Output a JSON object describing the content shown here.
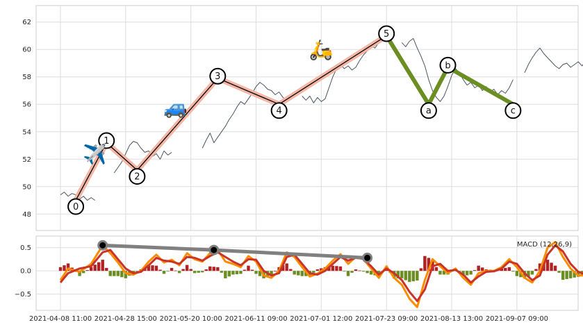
{
  "chart_data": [
    {
      "type": "line",
      "panel": "price",
      "ylim": [
        46.8,
        63.2
      ],
      "yticks": [
        48,
        50,
        52,
        54,
        56,
        58,
        60,
        62
      ],
      "grid": true,
      "price_segments": [
        [
          [
            0,
            49.4
          ],
          [
            1,
            49.6
          ],
          [
            2,
            49.3
          ],
          [
            3,
            49.5
          ],
          [
            4,
            49.4
          ],
          [
            5,
            49.1
          ],
          [
            6,
            49.3
          ],
          [
            7,
            49.0
          ],
          [
            8,
            49.2
          ],
          [
            9,
            49.0
          ]
        ],
        [
          [
            14,
            51.0
          ],
          [
            15,
            51.4
          ],
          [
            16,
            51.8
          ],
          [
            17,
            52.4
          ],
          [
            18,
            53.0
          ],
          [
            19,
            53.3
          ],
          [
            20,
            53.2
          ],
          [
            21,
            52.8
          ],
          [
            22,
            52.5
          ],
          [
            23,
            52.6
          ],
          [
            24,
            52.2
          ],
          [
            25,
            52.4
          ],
          [
            26,
            52.0
          ],
          [
            27,
            52.6
          ],
          [
            28,
            52.3
          ],
          [
            29,
            52.5
          ]
        ],
        [
          [
            37,
            52.8
          ],
          [
            38,
            53.4
          ],
          [
            39,
            53.9
          ],
          [
            40,
            53.2
          ],
          [
            41,
            53.6
          ],
          [
            42,
            54.0
          ],
          [
            43,
            54.4
          ],
          [
            44,
            54.9
          ],
          [
            45,
            55.3
          ],
          [
            46,
            55.8
          ],
          [
            47,
            56.2
          ],
          [
            48,
            56.0
          ],
          [
            49,
            56.4
          ],
          [
            50,
            56.8
          ],
          [
            51,
            57.3
          ],
          [
            52,
            57.6
          ],
          [
            53,
            57.4
          ],
          [
            54,
            57.1
          ],
          [
            55,
            57.0
          ],
          [
            56,
            56.7
          ],
          [
            57,
            56.9
          ],
          [
            58,
            56.5
          ],
          [
            59,
            56.3
          ]
        ],
        [
          [
            63,
            56.6
          ],
          [
            64,
            56.3
          ],
          [
            65,
            56.6
          ],
          [
            66,
            56.1
          ],
          [
            67,
            56.5
          ],
          [
            68,
            56.2
          ],
          [
            69,
            56.4
          ],
          [
            70,
            57.2
          ],
          [
            71,
            58.0
          ],
          [
            72,
            58.6
          ],
          [
            73,
            58.9
          ],
          [
            74,
            58.6
          ],
          [
            75,
            58.8
          ],
          [
            76,
            58.5
          ],
          [
            77,
            58.7
          ],
          [
            78,
            59.2
          ],
          [
            79,
            59.6
          ],
          [
            80,
            59.9
          ],
          [
            81,
            60.3
          ],
          [
            82,
            60.1
          ],
          [
            83,
            60.5
          ],
          [
            84,
            60.7
          ],
          [
            85,
            60.9
          ],
          [
            86,
            61.0
          ]
        ],
        [
          [
            89,
            60.5
          ],
          [
            90,
            60.2
          ],
          [
            91,
            60.6
          ],
          [
            92,
            60.8
          ],
          [
            93,
            60.1
          ],
          [
            94,
            59.5
          ],
          [
            95,
            58.8
          ],
          [
            96,
            57.8
          ],
          [
            97,
            57.0
          ],
          [
            98,
            56.5
          ],
          [
            99,
            56.2
          ],
          [
            100,
            56.6
          ],
          [
            101,
            57.3
          ],
          [
            102,
            58.1
          ],
          [
            103,
            58.6
          ],
          [
            104,
            58.3
          ],
          [
            105,
            57.8
          ],
          [
            106,
            57.4
          ],
          [
            107,
            57.6
          ],
          [
            108,
            57.2
          ],
          [
            109,
            57.4
          ],
          [
            110,
            57.0
          ],
          [
            111,
            57.3
          ],
          [
            112,
            56.9
          ],
          [
            113,
            57.1
          ],
          [
            114,
            56.7
          ],
          [
            115,
            57.0
          ],
          [
            116,
            56.8
          ],
          [
            117,
            57.2
          ],
          [
            118,
            57.8
          ]
        ],
        [
          [
            121,
            58.3
          ],
          [
            122,
            58.9
          ],
          [
            123,
            59.4
          ],
          [
            124,
            59.8
          ],
          [
            125,
            60.1
          ],
          [
            126,
            59.7
          ],
          [
            127,
            59.4
          ],
          [
            128,
            59.1
          ],
          [
            129,
            58.8
          ],
          [
            130,
            58.6
          ],
          [
            131,
            58.9
          ],
          [
            132,
            59.0
          ],
          [
            133,
            58.7
          ],
          [
            134,
            58.9
          ],
          [
            135,
            59.1
          ],
          [
            136,
            58.8
          ],
          [
            137,
            59.2
          ],
          [
            138,
            58.7
          ],
          [
            139,
            58.5
          ]
        ],
        [
          [
            141,
            58.4
          ],
          [
            142,
            58.6
          ],
          [
            143,
            58.3
          ]
        ],
        [
          [
            145,
            57.4
          ],
          [
            146,
            57.0
          ],
          [
            147,
            56.7
          ],
          [
            148,
            56.3
          ]
        ]
      ],
      "impulse_wave": {
        "points": [
          [
            4,
            49.0
          ],
          [
            12,
            53.2
          ],
          [
            20,
            51.2
          ],
          [
            41,
            57.9
          ],
          [
            57,
            56.0
          ],
          [
            85,
            61.0
          ]
        ],
        "labels": [
          "0",
          "1",
          "2",
          "3",
          "4",
          "5"
        ]
      },
      "corrective_wave": {
        "points": [
          [
            85,
            61.0
          ],
          [
            96,
            56.0
          ],
          [
            101,
            58.7
          ],
          [
            118,
            56.0
          ]
        ],
        "labels": [
          "",
          "a",
          "b",
          "c"
        ]
      },
      "emoji_markers": [
        {
          "x": 9,
          "y": 52.4,
          "name": "airplane",
          "glyph": "✈️"
        },
        {
          "x": 30,
          "y": 55.8,
          "name": "car",
          "glyph": "🚙"
        },
        {
          "x": 68,
          "y": 60.0,
          "name": "scooter",
          "glyph": "🛵"
        }
      ]
    },
    {
      "type": "line",
      "panel": "macd",
      "legend": "MACD (12,26,9)",
      "legend_position": "top-right",
      "ylim": [
        -0.85,
        0.75
      ],
      "yticks": [
        -0.5,
        0.0,
        0.5
      ],
      "ytick_labels": [
        "−0.5",
        "0.0",
        "0.5"
      ],
      "grid": true,
      "xticks": [
        {
          "x": 0,
          "label": "2021-04-08 11:00"
        },
        {
          "x": 17,
          "label": "2021-04-28 15:00"
        },
        {
          "x": 34,
          "label": "2021-05-20 10:00"
        },
        {
          "x": 51,
          "label": "2021-06-11 09:00"
        },
        {
          "x": 68,
          "label": "2021-07-01 12:00"
        },
        {
          "x": 85,
          "label": "2021-07-23 09:00"
        },
        {
          "x": 102,
          "label": "2021-08-13 13:00"
        },
        {
          "x": 119,
          "label": "2021-09-07 09:00"
        }
      ],
      "macd": [
        [
          0,
          -0.2
        ],
        [
          2,
          0.05
        ],
        [
          5,
          -0.02
        ],
        [
          8,
          0.15
        ],
        [
          11,
          0.55
        ],
        [
          13,
          0.38
        ],
        [
          15,
          0.18
        ],
        [
          17,
          -0.05
        ],
        [
          19,
          -0.08
        ],
        [
          21,
          0.0
        ],
        [
          23,
          0.2
        ],
        [
          25,
          0.35
        ],
        [
          27,
          0.18
        ],
        [
          29,
          0.24
        ],
        [
          31,
          0.12
        ],
        [
          33,
          0.38
        ],
        [
          35,
          0.25
        ],
        [
          37,
          0.2
        ],
        [
          39,
          0.38
        ],
        [
          41,
          0.45
        ],
        [
          43,
          0.2
        ],
        [
          45,
          0.15
        ],
        [
          47,
          0.08
        ],
        [
          49,
          0.32
        ],
        [
          51,
          0.2
        ],
        [
          53,
          -0.1
        ],
        [
          55,
          -0.15
        ],
        [
          57,
          0.0
        ],
        [
          59,
          0.4
        ],
        [
          61,
          0.3
        ],
        [
          63,
          0.08
        ],
        [
          65,
          -0.12
        ],
        [
          67,
          -0.06
        ],
        [
          69,
          0.05
        ],
        [
          71,
          0.22
        ],
        [
          73,
          0.36
        ],
        [
          75,
          0.15
        ],
        [
          77,
          0.3
        ],
        [
          79,
          0.25
        ],
        [
          81,
          0.05
        ],
        [
          83,
          -0.15
        ],
        [
          85,
          0.1
        ],
        [
          87,
          -0.15
        ],
        [
          89,
          -0.3
        ],
        [
          91,
          -0.6
        ],
        [
          93,
          -0.78
        ],
        [
          95,
          -0.2
        ],
        [
          97,
          0.25
        ],
        [
          99,
          0.1
        ],
        [
          101,
          -0.05
        ],
        [
          103,
          0.05
        ],
        [
          105,
          -0.15
        ],
        [
          107,
          -0.3
        ],
        [
          109,
          -0.05
        ],
        [
          111,
          0.0
        ],
        [
          113,
          0.0
        ],
        [
          115,
          0.08
        ],
        [
          117,
          0.25
        ],
        [
          119,
          0.08
        ],
        [
          121,
          -0.15
        ],
        [
          123,
          -0.25
        ],
        [
          125,
          0.0
        ],
        [
          127,
          0.5
        ],
        [
          129,
          0.62
        ],
        [
          131,
          0.3
        ],
        [
          133,
          0.05
        ],
        [
          135,
          -0.1
        ],
        [
          137,
          -0.1
        ],
        [
          139,
          0.15
        ],
        [
          141,
          0.02
        ],
        [
          143,
          -0.15
        ],
        [
          145,
          -0.35
        ],
        [
          147,
          -0.55
        ]
      ],
      "signal": [
        [
          0,
          -0.25
        ],
        [
          2,
          -0.05
        ],
        [
          5,
          0.05
        ],
        [
          8,
          0.1
        ],
        [
          11,
          0.4
        ],
        [
          13,
          0.45
        ],
        [
          15,
          0.25
        ],
        [
          17,
          0.05
        ],
        [
          19,
          -0.05
        ],
        [
          21,
          -0.02
        ],
        [
          23,
          0.12
        ],
        [
          25,
          0.28
        ],
        [
          27,
          0.22
        ],
        [
          29,
          0.2
        ],
        [
          31,
          0.15
        ],
        [
          33,
          0.3
        ],
        [
          35,
          0.28
        ],
        [
          37,
          0.22
        ],
        [
          39,
          0.32
        ],
        [
          41,
          0.4
        ],
        [
          43,
          0.3
        ],
        [
          45,
          0.2
        ],
        [
          47,
          0.12
        ],
        [
          49,
          0.25
        ],
        [
          51,
          0.24
        ],
        [
          53,
          0.0
        ],
        [
          55,
          -0.1
        ],
        [
          57,
          -0.05
        ],
        [
          59,
          0.3
        ],
        [
          61,
          0.35
        ],
        [
          63,
          0.15
        ],
        [
          65,
          -0.05
        ],
        [
          67,
          -0.08
        ],
        [
          69,
          0.0
        ],
        [
          71,
          0.15
        ],
        [
          73,
          0.3
        ],
        [
          75,
          0.22
        ],
        [
          77,
          0.28
        ],
        [
          79,
          0.26
        ],
        [
          81,
          0.1
        ],
        [
          83,
          -0.08
        ],
        [
          85,
          0.05
        ],
        [
          87,
          -0.05
        ],
        [
          89,
          -0.2
        ],
        [
          91,
          -0.45
        ],
        [
          93,
          -0.65
        ],
        [
          95,
          -0.4
        ],
        [
          97,
          0.1
        ],
        [
          99,
          0.15
        ],
        [
          101,
          0.0
        ],
        [
          103,
          0.02
        ],
        [
          105,
          -0.08
        ],
        [
          107,
          -0.25
        ],
        [
          109,
          -0.12
        ],
        [
          111,
          -0.02
        ],
        [
          113,
          -0.01
        ],
        [
          115,
          0.05
        ],
        [
          117,
          0.2
        ],
        [
          119,
          0.15
        ],
        [
          121,
          -0.05
        ],
        [
          123,
          -0.2
        ],
        [
          125,
          -0.1
        ],
        [
          127,
          0.35
        ],
        [
          129,
          0.55
        ],
        [
          131,
          0.42
        ],
        [
          133,
          0.15
        ],
        [
          135,
          -0.02
        ],
        [
          137,
          -0.08
        ],
        [
          139,
          0.08
        ],
        [
          141,
          0.08
        ],
        [
          143,
          -0.08
        ],
        [
          145,
          -0.25
        ],
        [
          147,
          -0.62
        ]
      ],
      "divergence_line": {
        "points": [
          [
            11,
            0.55
          ],
          [
            40,
            0.45
          ],
          [
            80,
            0.28
          ]
        ]
      }
    }
  ],
  "colors": {
    "price": "#4a5560",
    "impulse_band": "#f4b6a4",
    "impulse_line": "#000000",
    "corrective": "#6b8e23",
    "macd_line": "#ff8c00",
    "signal_line": "#c8342a",
    "hist_positive": "#b22222",
    "hist_negative": "#6b8e23",
    "divergence": "#808080",
    "grid": "#dddddd",
    "frame": "#cccccc"
  }
}
